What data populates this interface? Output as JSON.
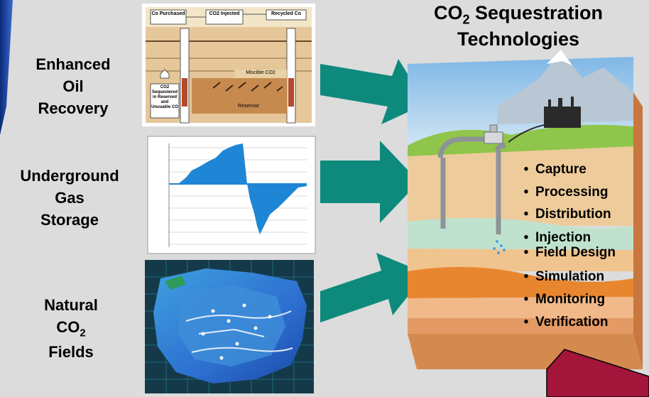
{
  "sources": [
    {
      "id": "eor",
      "lines": [
        "Enhanced",
        "Oil",
        "Recovery"
      ]
    },
    {
      "id": "ugs",
      "lines": [
        "Underground",
        "Gas",
        "Storage"
      ]
    },
    {
      "id": "co2",
      "line1": "Natural",
      "co2_main": "CO",
      "co2_sub": "2",
      "line3": "Fields"
    }
  ],
  "title": {
    "line1_main": "CO",
    "line1_sub": "2",
    "line1_rest": " Sequestration",
    "line2": "Technologies"
  },
  "eor_diagram": {
    "box_purchased": "Co Purchased",
    "box_injected": "CO2 Injected",
    "box_recycled": "Recycled Co",
    "box_sequestered": "CO2 Sequestered in Reserved and Unusable CO",
    "label_miscible": "Miscible CO2",
    "label_reservoir": "Reservoir"
  },
  "technologies": [
    "Capture",
    "Processing",
    "Distribution",
    "Injection",
    "Field Design",
    "Simulation",
    "Monitoring",
    "Verification"
  ],
  "colors": {
    "background": "#dcdcdc",
    "arrow": "#0e8a7d",
    "accent_blue": "#1d3f9e",
    "chart_fill": "#1f86d6",
    "map_blue": "#2d6fd0",
    "maroon": "#a3153b"
  }
}
